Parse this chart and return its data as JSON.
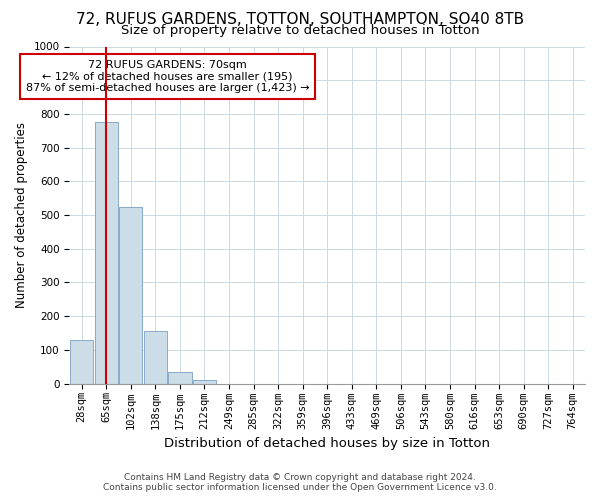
{
  "title": "72, RUFUS GARDENS, TOTTON, SOUTHAMPTON, SO40 8TB",
  "subtitle": "Size of property relative to detached houses in Totton",
  "xlabel": "Distribution of detached houses by size in Totton",
  "ylabel": "Number of detached properties",
  "footer1": "Contains HM Land Registry data © Crown copyright and database right 2024.",
  "footer2": "Contains public sector information licensed under the Open Government Licence v3.0.",
  "bins": [
    "28sqm",
    "65sqm",
    "102sqm",
    "138sqm",
    "175sqm",
    "212sqm",
    "249sqm",
    "285sqm",
    "322sqm",
    "359sqm",
    "396sqm",
    "433sqm",
    "469sqm",
    "506sqm",
    "543sqm",
    "580sqm",
    "616sqm",
    "653sqm",
    "690sqm",
    "727sqm",
    "764sqm"
  ],
  "values": [
    130,
    775,
    525,
    155,
    35,
    10,
    0,
    0,
    0,
    0,
    0,
    0,
    0,
    0,
    0,
    0,
    0,
    0,
    0,
    0,
    0
  ],
  "bar_color": "#ccdde8",
  "bar_edge_color": "#88aac8",
  "vline_x": 1.0,
  "vline_color": "#cc0000",
  "annotation_text": "72 RUFUS GARDENS: 70sqm\n← 12% of detached houses are smaller (195)\n87% of semi-detached houses are larger (1,423) →",
  "annotation_box_color": "#ffffff",
  "annotation_box_edge": "#cc0000",
  "ylim": [
    0,
    1000
  ],
  "yticks": [
    0,
    100,
    200,
    300,
    400,
    500,
    600,
    700,
    800,
    900,
    1000
  ],
  "background_color": "#ffffff",
  "grid_color": "#ccd9e4",
  "title_fontsize": 11,
  "subtitle_fontsize": 9.5,
  "xlabel_fontsize": 9.5,
  "ylabel_fontsize": 8.5,
  "tick_fontsize": 7.5,
  "annotation_fontsize": 8,
  "footer_fontsize": 6.5
}
